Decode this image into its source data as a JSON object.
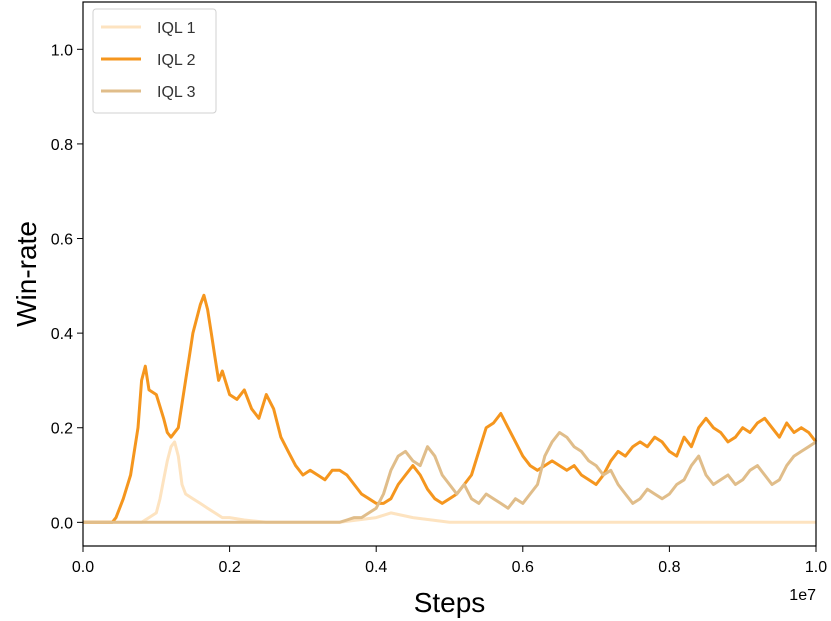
{
  "chart_data": {
    "type": "line",
    "xlabel": "Steps",
    "ylabel": "Win-rate",
    "x_offset_label": "1e7",
    "xlim": [
      0.0,
      1.0
    ],
    "ylim": [
      -0.05,
      1.1
    ],
    "xticks": [
      0.0,
      0.2,
      0.4,
      0.6,
      0.8,
      1.0
    ],
    "xtick_labels": [
      "0.0",
      "0.2",
      "0.4",
      "0.6",
      "0.8",
      "1.0"
    ],
    "yticks": [
      0.0,
      0.2,
      0.4,
      0.6,
      0.8,
      1.0
    ],
    "ytick_labels": [
      "0.0",
      "0.2",
      "0.4",
      "0.6",
      "0.8",
      "1.0"
    ],
    "grid": false,
    "legend_position": "top-left",
    "series": [
      {
        "name": "IQL 1",
        "color": "#fde3c0",
        "x": [
          0.0,
          0.08,
          0.09,
          0.1,
          0.105,
          0.11,
          0.115,
          0.12,
          0.125,
          0.13,
          0.135,
          0.14,
          0.15,
          0.16,
          0.17,
          0.18,
          0.19,
          0.2,
          0.22,
          0.25,
          0.3,
          0.35,
          0.4,
          0.42,
          0.45,
          0.5,
          0.6,
          0.8,
          1.0
        ],
        "y": [
          0.0,
          0.0,
          0.01,
          0.02,
          0.05,
          0.09,
          0.13,
          0.16,
          0.17,
          0.14,
          0.08,
          0.06,
          0.05,
          0.04,
          0.03,
          0.02,
          0.01,
          0.01,
          0.005,
          0.0,
          0.0,
          0.0,
          0.01,
          0.02,
          0.01,
          0.0,
          0.0,
          0.0,
          0.0
        ]
      },
      {
        "name": "IQL 2",
        "color": "#f5961e",
        "x": [
          0.0,
          0.04,
          0.045,
          0.055,
          0.065,
          0.075,
          0.08,
          0.085,
          0.09,
          0.1,
          0.11,
          0.115,
          0.12,
          0.13,
          0.14,
          0.145,
          0.15,
          0.16,
          0.165,
          0.17,
          0.175,
          0.18,
          0.185,
          0.19,
          0.2,
          0.21,
          0.22,
          0.23,
          0.24,
          0.25,
          0.26,
          0.27,
          0.28,
          0.29,
          0.3,
          0.31,
          0.32,
          0.33,
          0.34,
          0.35,
          0.36,
          0.37,
          0.38,
          0.39,
          0.4,
          0.41,
          0.42,
          0.43,
          0.44,
          0.45,
          0.46,
          0.47,
          0.48,
          0.49,
          0.5,
          0.51,
          0.52,
          0.53,
          0.54,
          0.55,
          0.56,
          0.57,
          0.58,
          0.59,
          0.6,
          0.61,
          0.62,
          0.63,
          0.64,
          0.65,
          0.66,
          0.67,
          0.68,
          0.69,
          0.7,
          0.71,
          0.72,
          0.73,
          0.74,
          0.75,
          0.76,
          0.77,
          0.78,
          0.79,
          0.8,
          0.81,
          0.82,
          0.83,
          0.84,
          0.85,
          0.86,
          0.87,
          0.88,
          0.89,
          0.9,
          0.91,
          0.92,
          0.93,
          0.94,
          0.95,
          0.96,
          0.97,
          0.98,
          0.99,
          1.0
        ],
        "y": [
          0.0,
          0.0,
          0.01,
          0.05,
          0.1,
          0.2,
          0.3,
          0.33,
          0.28,
          0.27,
          0.22,
          0.19,
          0.18,
          0.2,
          0.3,
          0.35,
          0.4,
          0.46,
          0.48,
          0.45,
          0.4,
          0.35,
          0.3,
          0.32,
          0.27,
          0.26,
          0.28,
          0.24,
          0.22,
          0.27,
          0.24,
          0.18,
          0.15,
          0.12,
          0.1,
          0.11,
          0.1,
          0.09,
          0.11,
          0.11,
          0.1,
          0.08,
          0.06,
          0.05,
          0.04,
          0.04,
          0.05,
          0.08,
          0.1,
          0.12,
          0.1,
          0.07,
          0.05,
          0.04,
          0.05,
          0.06,
          0.08,
          0.1,
          0.15,
          0.2,
          0.21,
          0.23,
          0.2,
          0.17,
          0.14,
          0.12,
          0.11,
          0.12,
          0.13,
          0.12,
          0.11,
          0.12,
          0.1,
          0.09,
          0.08,
          0.1,
          0.13,
          0.15,
          0.14,
          0.16,
          0.17,
          0.16,
          0.18,
          0.17,
          0.15,
          0.14,
          0.18,
          0.16,
          0.2,
          0.22,
          0.2,
          0.19,
          0.17,
          0.18,
          0.2,
          0.19,
          0.21,
          0.22,
          0.2,
          0.18,
          0.21,
          0.19,
          0.2,
          0.19,
          0.17
        ]
      },
      {
        "name": "IQL 3",
        "color": "#e0bd8a",
        "x": [
          0.0,
          0.3,
          0.35,
          0.36,
          0.37,
          0.38,
          0.39,
          0.4,
          0.41,
          0.42,
          0.43,
          0.44,
          0.45,
          0.46,
          0.47,
          0.48,
          0.49,
          0.5,
          0.51,
          0.52,
          0.53,
          0.54,
          0.55,
          0.56,
          0.57,
          0.58,
          0.59,
          0.6,
          0.61,
          0.62,
          0.63,
          0.64,
          0.65,
          0.66,
          0.67,
          0.68,
          0.69,
          0.7,
          0.71,
          0.72,
          0.73,
          0.74,
          0.75,
          0.76,
          0.77,
          0.78,
          0.79,
          0.8,
          0.81,
          0.82,
          0.83,
          0.84,
          0.85,
          0.86,
          0.87,
          0.88,
          0.89,
          0.9,
          0.91,
          0.92,
          0.93,
          0.94,
          0.95,
          0.96,
          0.97,
          0.98,
          0.99,
          1.0
        ],
        "y": [
          0.0,
          0.0,
          0.0,
          0.005,
          0.01,
          0.01,
          0.02,
          0.03,
          0.06,
          0.11,
          0.14,
          0.15,
          0.13,
          0.12,
          0.16,
          0.14,
          0.1,
          0.08,
          0.06,
          0.08,
          0.05,
          0.04,
          0.06,
          0.05,
          0.04,
          0.03,
          0.05,
          0.04,
          0.06,
          0.08,
          0.14,
          0.17,
          0.19,
          0.18,
          0.16,
          0.15,
          0.13,
          0.12,
          0.1,
          0.11,
          0.08,
          0.06,
          0.04,
          0.05,
          0.07,
          0.06,
          0.05,
          0.06,
          0.08,
          0.09,
          0.12,
          0.14,
          0.1,
          0.08,
          0.09,
          0.1,
          0.08,
          0.09,
          0.11,
          0.12,
          0.1,
          0.08,
          0.09,
          0.12,
          0.14,
          0.15,
          0.16,
          0.17
        ]
      }
    ]
  }
}
